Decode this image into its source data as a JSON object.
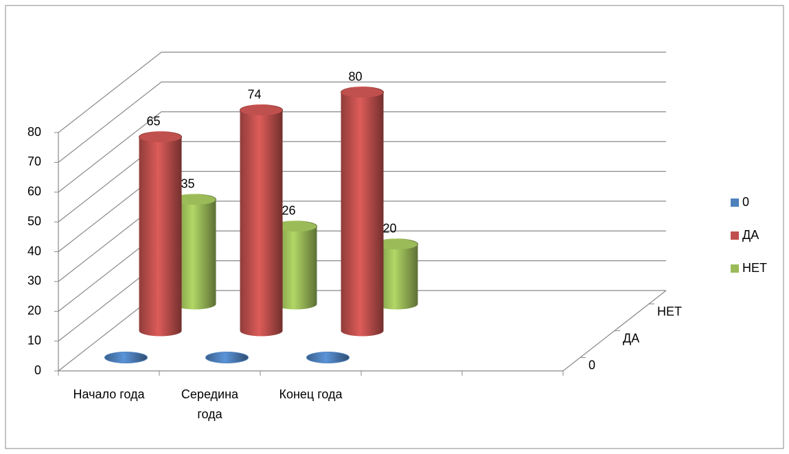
{
  "chart_data": {
    "type": "bar3d",
    "categories": [
      "Начало года",
      "Середина года",
      "Конец года",
      null,
      null
    ],
    "series": [
      {
        "name": "0",
        "color": "#4f81bd",
        "values": [
          0,
          0,
          0,
          null,
          null
        ],
        "data_labels": false
      },
      {
        "name": "ДА",
        "color": "#c0504d",
        "values": [
          65,
          74,
          80,
          null,
          null
        ],
        "data_labels": true
      },
      {
        "name": "НЕТ",
        "color": "#9bbb59",
        "values": [
          35,
          26,
          20,
          null,
          null
        ],
        "data_labels": true
      }
    ],
    "ylim": [
      0,
      80
    ],
    "yticks": [
      0,
      10,
      20,
      30,
      40,
      50,
      60,
      70,
      80
    ],
    "grid": true,
    "legend": "right"
  }
}
